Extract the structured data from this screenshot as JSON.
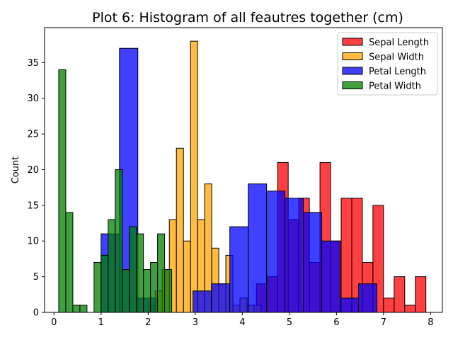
{
  "chart_data": {
    "type": "bar",
    "title": "Plot 6: Histogram of all feautres together (cm)",
    "xlabel": "",
    "ylabel": "Count",
    "xlim": [
      -0.2,
      8.25
    ],
    "ylim": [
      0,
      39.9
    ],
    "xticks": [
      "0",
      "1",
      "2",
      "3",
      "4",
      "5",
      "6",
      "7",
      "8"
    ],
    "yticks": [
      "0",
      "5",
      "10",
      "15",
      "20",
      "25",
      "30",
      "35"
    ],
    "grid": false,
    "legend_position": "top-right",
    "series": [
      {
        "name": "Sepal Length",
        "color": "#ff0000",
        "opacity": 0.75,
        "bin_width": 0.225,
        "bin_starts": [
          4.3,
          4.525,
          4.75,
          4.975,
          5.2,
          5.425,
          5.65,
          5.875,
          6.1,
          6.325,
          6.55,
          6.775,
          7.0,
          7.225,
          7.45,
          7.675
        ],
        "values": [
          4,
          5,
          21,
          13,
          16,
          7,
          21,
          10,
          16,
          16,
          7,
          15,
          2,
          5,
          1,
          5
        ]
      },
      {
        "name": "Sepal Width",
        "color": "#ffa500",
        "opacity": 0.75,
        "bin_width": 0.15,
        "bin_starts": [
          2.0,
          2.15,
          2.3,
          2.45,
          2.6,
          2.75,
          2.9,
          3.05,
          3.2,
          3.35,
          3.5,
          3.65,
          3.8,
          3.95,
          4.1,
          4.25
        ],
        "values": [
          1,
          3,
          6,
          13,
          23,
          10,
          38,
          13,
          18,
          9,
          4,
          8,
          1,
          2,
          1,
          1
        ]
      },
      {
        "name": "Petal Length",
        "color": "#0000ff",
        "opacity": 0.75,
        "bin_width": 0.3906,
        "bin_starts": [
          1.0,
          1.3906,
          1.7812,
          2.1719,
          2.5625,
          2.9531,
          3.3438,
          3.7344,
          4.125,
          4.5156,
          4.9062,
          5.2969,
          5.6875,
          6.0781,
          6.4688
        ],
        "values": [
          11,
          37,
          2,
          0,
          0,
          3,
          4,
          12,
          18,
          17,
          16,
          14,
          10,
          2,
          4
        ]
      },
      {
        "name": "Petal Width",
        "color": "#008000",
        "opacity": 0.75,
        "bin_width": 0.15,
        "bin_starts": [
          0.1,
          0.25,
          0.4,
          0.55,
          0.7,
          0.85,
          1.0,
          1.15,
          1.3,
          1.45,
          1.6,
          1.75,
          1.9,
          2.05,
          2.2,
          2.35
        ],
        "values": [
          34,
          14,
          1,
          1,
          0,
          7,
          8,
          13,
          20,
          6,
          12,
          11,
          6,
          7,
          11,
          6
        ]
      }
    ]
  }
}
